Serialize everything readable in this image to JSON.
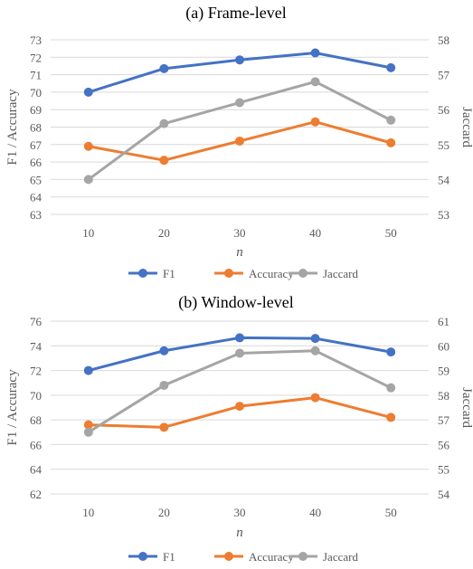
{
  "chart_data": [
    {
      "type": "line",
      "title": "(a) Frame-level",
      "xlabel": "n",
      "ylabel": "F1 / Accuracy",
      "y2label": "Jaccard",
      "categories": [
        "10",
        "20",
        "30",
        "40",
        "50"
      ],
      "ylim": [
        63,
        73
      ],
      "y2lim": [
        53,
        58
      ],
      "ytick_step": 1,
      "y2tick_step": 1,
      "grid": true,
      "legend_position": "bottom",
      "series": [
        {
          "name": "F1",
          "axis": "left",
          "color": "#4472C4",
          "values": [
            70.0,
            71.35,
            71.85,
            72.25,
            71.4
          ]
        },
        {
          "name": "Accuracy",
          "axis": "left",
          "color": "#ED7D31",
          "values": [
            66.9,
            66.1,
            67.2,
            68.3,
            67.1
          ]
        },
        {
          "name": "Jaccard",
          "axis": "right",
          "color": "#A5A5A5",
          "values": [
            54.0,
            55.6,
            56.2,
            56.8,
            55.7
          ]
        }
      ]
    },
    {
      "type": "line",
      "title": "(b) Window-level",
      "xlabel": "n",
      "ylabel": "F1 / Accuracy",
      "y2label": "Jaccard",
      "categories": [
        "10",
        "20",
        "30",
        "40",
        "50"
      ],
      "ylim": [
        62,
        76
      ],
      "y2lim": [
        54,
        61
      ],
      "ytick_step": 2,
      "y2tick_step": 1,
      "grid": true,
      "legend_position": "bottom",
      "series": [
        {
          "name": "F1",
          "axis": "left",
          "color": "#4472C4",
          "values": [
            72.0,
            73.6,
            74.65,
            74.6,
            73.5
          ]
        },
        {
          "name": "Accuracy",
          "axis": "left",
          "color": "#ED7D31",
          "values": [
            67.6,
            67.4,
            69.1,
            69.8,
            68.2
          ]
        },
        {
          "name": "Jaccard",
          "axis": "right",
          "color": "#A5A5A5",
          "values": [
            56.5,
            58.4,
            59.7,
            59.8,
            58.3
          ]
        }
      ]
    }
  ]
}
